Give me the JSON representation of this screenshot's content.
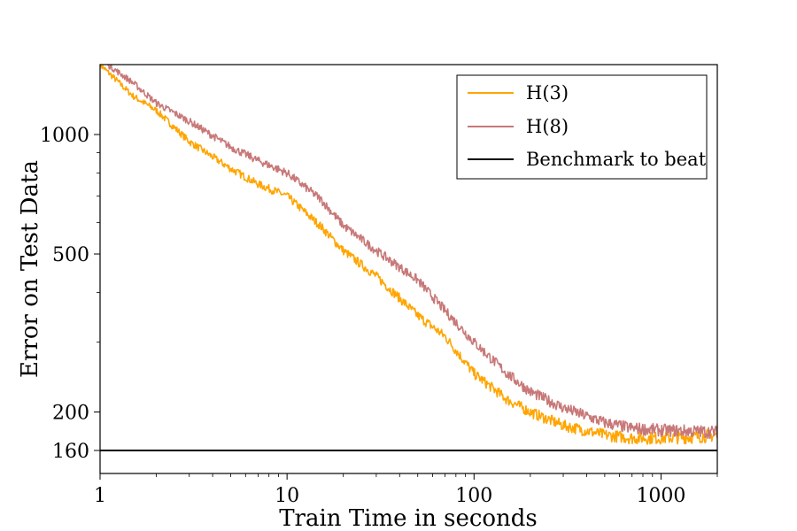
{
  "chart_data": {
    "type": "line",
    "title": "",
    "xlabel": "Train Time in seconds",
    "ylabel": "Error on Test Data",
    "xscale": "log",
    "yscale": "log",
    "xlim": [
      1,
      2000
    ],
    "ylim": [
      140,
      1500
    ],
    "xticks": [
      {
        "value": 1,
        "label": "1"
      },
      {
        "value": 10,
        "label": "10"
      },
      {
        "value": 100,
        "label": "100"
      },
      {
        "value": 1000,
        "label": "1000"
      }
    ],
    "yticks": [
      {
        "value": 160,
        "label": "160"
      },
      {
        "value": 200,
        "label": "200"
      },
      {
        "value": 500,
        "label": "500"
      },
      {
        "value": 1000,
        "label": "1000"
      }
    ],
    "grid": false,
    "legend": "top-right",
    "series": [
      {
        "name": "H(3)",
        "color": "#ffa500",
        "x": [
          1,
          1.5,
          2,
          3,
          5,
          7,
          10,
          15,
          20,
          30,
          50,
          70,
          100,
          150,
          200,
          300,
          500,
          700,
          1000,
          1500,
          2000
        ],
        "y": [
          1500,
          1250,
          1150,
          960,
          820,
          750,
          700,
          590,
          510,
          440,
          350,
          310,
          250,
          215,
          200,
          185,
          175,
          172,
          172,
          173,
          175
        ]
      },
      {
        "name": "H(8)",
        "color": "#c87878",
        "x": [
          1.1,
          1.5,
          2,
          3,
          5,
          7,
          10,
          15,
          20,
          30,
          50,
          70,
          100,
          150,
          200,
          300,
          500,
          700,
          1000,
          1500,
          2000
        ],
        "y": [
          1500,
          1350,
          1200,
          1080,
          930,
          860,
          800,
          690,
          590,
          510,
          430,
          360,
          300,
          250,
          225,
          205,
          188,
          182,
          180,
          179,
          178
        ]
      }
    ],
    "hlines": [
      {
        "name": "Benchmark to beat",
        "value": 160,
        "color": "#000000"
      }
    ]
  }
}
